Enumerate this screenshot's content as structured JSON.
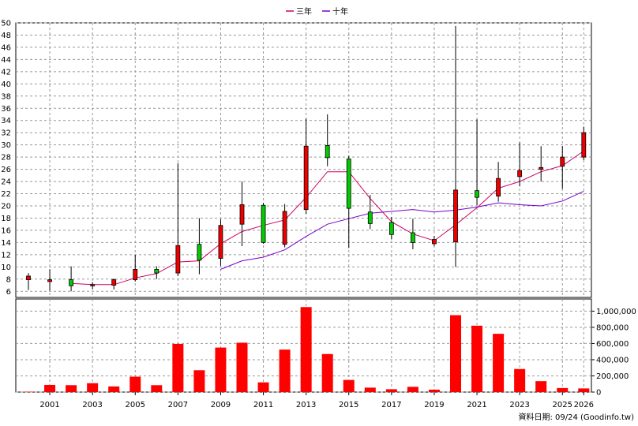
{
  "legend": [
    {
      "name": "三年",
      "color": "#cc0066"
    },
    {
      "name": "十年",
      "color": "#7700cc"
    }
  ],
  "footer": "資料日期: 09/24  (Goodinfo.tw)",
  "chart_data": [
    {
      "type": "candlestick",
      "x_tick_labels": [
        "2001",
        "2003",
        "2005",
        "2007",
        "2009",
        "2011",
        "2013",
        "2015",
        "2017",
        "2019",
        "2021",
        "2023",
        "2025",
        "2026"
      ],
      "ylim": [
        5,
        50
      ],
      "y_ticks": [
        6,
        8,
        10,
        12,
        14,
        16,
        18,
        20,
        22,
        24,
        26,
        28,
        30,
        32,
        34,
        36,
        38,
        40,
        42,
        44,
        46,
        48,
        50
      ],
      "grid": true,
      "legend_position": "top-center",
      "up_color": "#ee0000",
      "down_color": "#00cc00",
      "candles": [
        {
          "year": 2000,
          "open": 7.9,
          "close": 8.5,
          "high": 9.0,
          "low": 6.2
        },
        {
          "year": 2001,
          "open": 7.6,
          "close": 7.9,
          "high": 9.6,
          "low": 6.1
        },
        {
          "year": 2002,
          "open": 7.9,
          "close": 6.9,
          "high": 10.1,
          "low": 6.0
        },
        {
          "year": 2003,
          "open": 6.9,
          "close": 7.1,
          "high": 7.5,
          "low": 6.4
        },
        {
          "year": 2004,
          "open": 7.0,
          "close": 7.9,
          "high": 8.1,
          "low": 6.3
        },
        {
          "year": 2005,
          "open": 7.9,
          "close": 9.6,
          "high": 12.0,
          "low": 7.6
        },
        {
          "year": 2006,
          "open": 9.6,
          "close": 9.0,
          "high": 10.1,
          "low": 8.0
        },
        {
          "year": 2007,
          "open": 9.0,
          "close": 13.5,
          "high": 27.0,
          "low": 8.5
        },
        {
          "year": 2008,
          "open": 13.7,
          "close": 11.1,
          "high": 18.0,
          "low": 8.8
        },
        {
          "year": 2009,
          "open": 11.4,
          "close": 16.8,
          "high": 17.8,
          "low": 10.2
        },
        {
          "year": 2010,
          "open": 17.0,
          "close": 20.2,
          "high": 24.0,
          "low": 13.4
        },
        {
          "year": 2011,
          "open": 20.1,
          "close": 14.0,
          "high": 20.5,
          "low": 13.8
        },
        {
          "year": 2012,
          "open": 13.7,
          "close": 19.1,
          "high": 20.3,
          "low": 13.2
        },
        {
          "year": 2013,
          "open": 19.4,
          "close": 29.8,
          "high": 34.3,
          "low": 18.7
        },
        {
          "year": 2014,
          "open": 29.9,
          "close": 27.9,
          "high": 35.0,
          "low": 26.5
        },
        {
          "year": 2015,
          "open": 27.7,
          "close": 19.6,
          "high": 28.2,
          "low": 13.1
        },
        {
          "year": 2016,
          "open": 19.0,
          "close": 17.1,
          "high": 21.8,
          "low": 16.2
        },
        {
          "year": 2017,
          "open": 17.3,
          "close": 15.3,
          "high": 18.2,
          "low": 14.5
        },
        {
          "year": 2018,
          "open": 15.6,
          "close": 14.0,
          "high": 17.9,
          "low": 12.9
        },
        {
          "year": 2019,
          "open": 13.8,
          "close": 14.5,
          "high": 15.1,
          "low": 13.4
        },
        {
          "year": 2020,
          "open": 14.1,
          "close": 22.6,
          "high": 49.5,
          "low": 10.0
        },
        {
          "year": 2021,
          "open": 22.5,
          "close": 21.4,
          "high": 34.2,
          "low": 20.1
        },
        {
          "year": 2022,
          "open": 21.6,
          "close": 24.5,
          "high": 27.2,
          "low": 20.7
        },
        {
          "year": 2023,
          "open": 24.8,
          "close": 25.8,
          "high": 30.4,
          "low": 23.2
        },
        {
          "year": 2024,
          "open": 26.0,
          "close": 26.3,
          "high": 29.8,
          "low": 24.0
        },
        {
          "year": 2025,
          "open": 26.5,
          "close": 28.0,
          "high": 29.8,
          "low": 22.8
        },
        {
          "year": 2026,
          "open": 28.0,
          "close": 32.0,
          "high": 33.0,
          "low": 27.5
        }
      ],
      "series": [
        {
          "name": "三年",
          "color": "#cc0066",
          "points": [
            [
              2002,
              7.3
            ],
            [
              2003,
              7.1
            ],
            [
              2004,
              7.1
            ],
            [
              2005,
              8.2
            ],
            [
              2006,
              8.9
            ],
            [
              2007,
              10.8
            ],
            [
              2008,
              11.0
            ],
            [
              2009,
              13.8
            ],
            [
              2010,
              15.8
            ],
            [
              2011,
              16.8
            ],
            [
              2012,
              17.7
            ],
            [
              2013,
              21.4
            ],
            [
              2014,
              25.6
            ],
            [
              2015,
              25.6
            ],
            [
              2016,
              21.2
            ],
            [
              2017,
              17.4
            ],
            [
              2018,
              15.4
            ],
            [
              2019,
              14.3
            ],
            [
              2020,
              16.9
            ],
            [
              2021,
              19.7
            ],
            [
              2022,
              22.9
            ],
            [
              2023,
              24.0
            ],
            [
              2024,
              25.6
            ],
            [
              2025,
              26.6
            ],
            [
              2026,
              29.0
            ]
          ]
        },
        {
          "name": "十年",
          "color": "#7700cc",
          "points": [
            [
              2009,
              9.6
            ],
            [
              2010,
              11.0
            ],
            [
              2011,
              11.6
            ],
            [
              2012,
              12.8
            ],
            [
              2013,
              15.0
            ],
            [
              2014,
              17.0
            ],
            [
              2015,
              17.9
            ],
            [
              2016,
              18.8
            ],
            [
              2017,
              19.1
            ],
            [
              2018,
              19.4
            ],
            [
              2019,
              19.0
            ],
            [
              2020,
              19.3
            ],
            [
              2021,
              19.8
            ],
            [
              2022,
              20.5
            ],
            [
              2023,
              20.2
            ],
            [
              2024,
              20.0
            ],
            [
              2025,
              20.8
            ],
            [
              2026,
              22.4
            ]
          ]
        }
      ]
    },
    {
      "type": "bar",
      "ylim": [
        0,
        1150000
      ],
      "y_tick_labels": [
        "0",
        "200,000",
        "400,000",
        "600,000",
        "800,000",
        "1,000,000"
      ],
      "y_tick_values": [
        0,
        200000,
        400000,
        600000,
        800000,
        1000000
      ],
      "color": "#ff0000",
      "grid": true,
      "bars": [
        {
          "year": 2000,
          "value": 5000
        },
        {
          "year": 2001,
          "value": 88000
        },
        {
          "year": 2002,
          "value": 85000
        },
        {
          "year": 2003,
          "value": 110000
        },
        {
          "year": 2004,
          "value": 70000
        },
        {
          "year": 2005,
          "value": 190000
        },
        {
          "year": 2006,
          "value": 85000
        },
        {
          "year": 2007,
          "value": 595000
        },
        {
          "year": 2008,
          "value": 270000
        },
        {
          "year": 2009,
          "value": 550000
        },
        {
          "year": 2010,
          "value": 610000
        },
        {
          "year": 2011,
          "value": 120000
        },
        {
          "year": 2012,
          "value": 525000
        },
        {
          "year": 2013,
          "value": 1050000
        },
        {
          "year": 2014,
          "value": 470000
        },
        {
          "year": 2015,
          "value": 150000
        },
        {
          "year": 2016,
          "value": 55000
        },
        {
          "year": 2017,
          "value": 35000
        },
        {
          "year": 2018,
          "value": 65000
        },
        {
          "year": 2019,
          "value": 30000
        },
        {
          "year": 2020,
          "value": 950000
        },
        {
          "year": 2021,
          "value": 820000
        },
        {
          "year": 2022,
          "value": 720000
        },
        {
          "year": 2023,
          "value": 285000
        },
        {
          "year": 2024,
          "value": 135000
        },
        {
          "year": 2025,
          "value": 50000
        },
        {
          "year": 2026,
          "value": 45000
        }
      ]
    }
  ]
}
